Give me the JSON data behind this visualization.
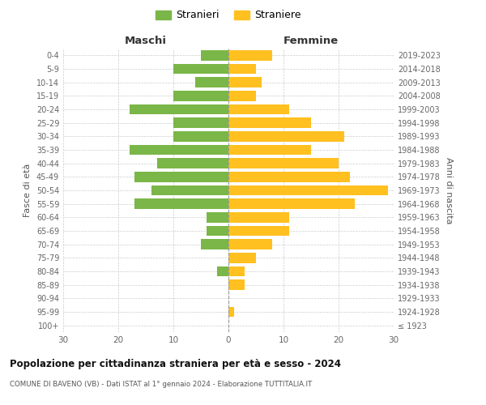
{
  "age_groups": [
    "100+",
    "95-99",
    "90-94",
    "85-89",
    "80-84",
    "75-79",
    "70-74",
    "65-69",
    "60-64",
    "55-59",
    "50-54",
    "45-49",
    "40-44",
    "35-39",
    "30-34",
    "25-29",
    "20-24",
    "15-19",
    "10-14",
    "5-9",
    "0-4"
  ],
  "birth_years": [
    "≤ 1923",
    "1924-1928",
    "1929-1933",
    "1934-1938",
    "1939-1943",
    "1944-1948",
    "1949-1953",
    "1954-1958",
    "1959-1963",
    "1964-1968",
    "1969-1973",
    "1974-1978",
    "1979-1983",
    "1984-1988",
    "1989-1993",
    "1994-1998",
    "1999-2003",
    "2004-2008",
    "2009-2013",
    "2014-2018",
    "2019-2023"
  ],
  "males": [
    0,
    0,
    0,
    0,
    2,
    0,
    5,
    4,
    4,
    17,
    14,
    17,
    13,
    18,
    10,
    10,
    18,
    10,
    6,
    10,
    5
  ],
  "females": [
    0,
    1,
    0,
    3,
    3,
    5,
    8,
    11,
    11,
    23,
    29,
    22,
    20,
    15,
    21,
    15,
    11,
    5,
    6,
    5,
    8
  ],
  "male_color": "#7ab648",
  "female_color": "#ffc020",
  "background_color": "#ffffff",
  "grid_color": "#cccccc",
  "title": "Popolazione per cittadinanza straniera per età e sesso - 2024",
  "subtitle": "COMUNE DI BAVENO (VB) - Dati ISTAT al 1° gennaio 2024 - Elaborazione TUTTITALIA.IT",
  "xlabel_left": "Maschi",
  "xlabel_right": "Femmine",
  "ylabel_left": "Fasce di età",
  "ylabel_right": "Anni di nascita",
  "legend_stranieri": "Stranieri",
  "legend_straniere": "Straniere",
  "xlim": 30,
  "bar_height": 0.75
}
